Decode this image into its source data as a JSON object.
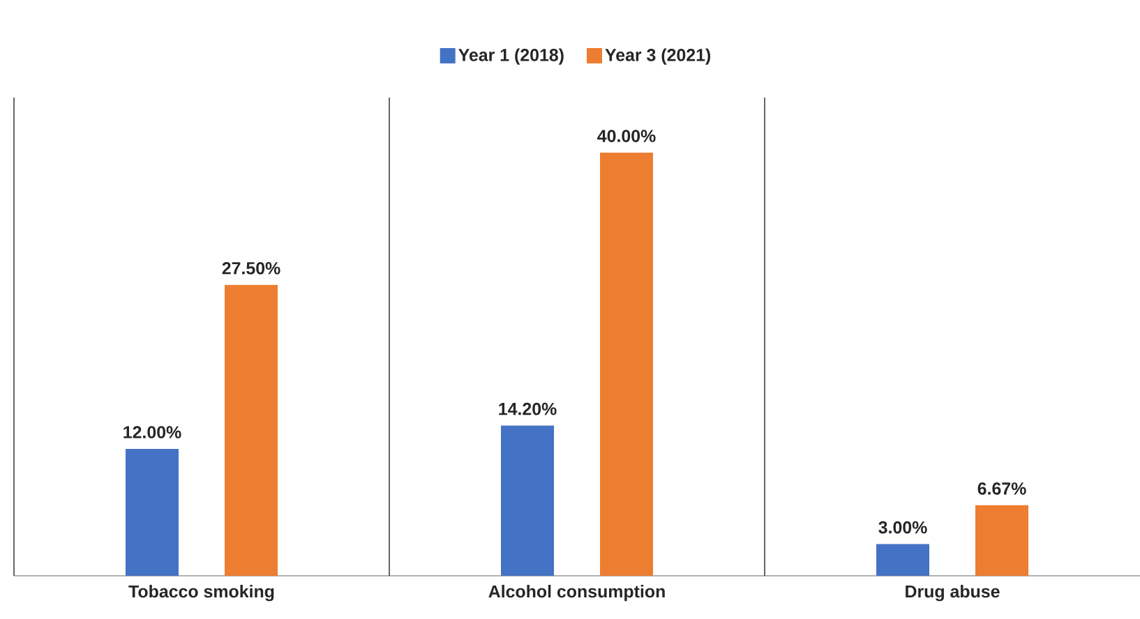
{
  "chart_data": {
    "type": "bar",
    "categories": [
      "Tobacco smoking",
      "Alcohol consumption",
      "Drug abuse"
    ],
    "series": [
      {
        "name": "Year 1 (2018)",
        "color": "#4472c4",
        "values": [
          12.0,
          14.2,
          3.0
        ],
        "value_labels": [
          "12.00%",
          "14.20%",
          "3.00%"
        ]
      },
      {
        "name": "Year 3 (2021)",
        "color": "#ed7d31",
        "values": [
          27.5,
          40.0,
          6.67
        ],
        "value_labels": [
          "27.50%",
          "40.00%",
          "6.67%"
        ]
      }
    ],
    "legend": "top"
  }
}
